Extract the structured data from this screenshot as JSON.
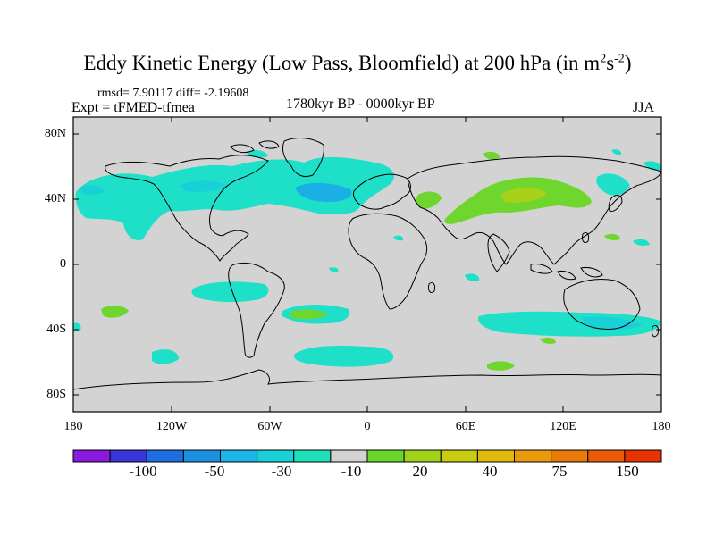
{
  "title": {
    "main": "Eddy Kinetic Energy (Low Pass, Bloomfield) at 200 hPa (in m",
    "sup1": "2",
    "mid": "s",
    "sup2": "-2",
    "end": ")"
  },
  "stats": "rmsd= 7.90117 diff= -2.19608",
  "expt": "Expt = tFMED-tfmea",
  "period": "1780kyr BP - 0000kyr BP",
  "season": "JJA",
  "lat_labels": [
    "80N",
    "40N",
    "0",
    "40S",
    "80S"
  ],
  "lon_labels": [
    "180",
    "120W",
    "60W",
    "0",
    "60E",
    "120E",
    "180"
  ],
  "colorbar": {
    "labels": [
      "-100",
      "-50",
      "-30",
      "-10",
      "20",
      "40",
      "75",
      "150"
    ],
    "colors": [
      "#8a1ae0",
      "#3a35d8",
      "#1f6ee0",
      "#1b8fe0",
      "#1ab6e8",
      "#1bd1d8",
      "#1ee0b8",
      "#d3d3d3",
      "#6ad62a",
      "#a0d21a",
      "#c8cc12",
      "#e0b80e",
      "#e89a0c",
      "#ea7a0a",
      "#ea5a08",
      "#e83204"
    ]
  },
  "colors": {
    "background_field": "#d3d3d3",
    "cyan_light": "#1ee0c8",
    "cyan_mid": "#1ad0d8",
    "blue": "#1ab0e6",
    "green": "#6fd62e",
    "yellowgreen": "#a8d21a"
  }
}
